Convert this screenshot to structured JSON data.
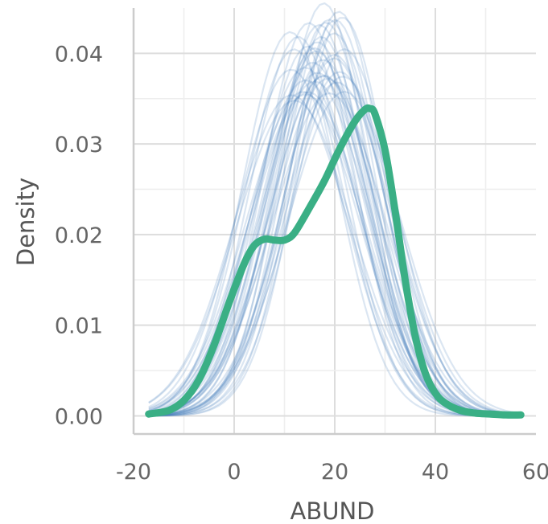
{
  "chart_data": {
    "type": "line",
    "title": "",
    "xlabel": "ABUND",
    "ylabel": "Density",
    "xlim": [
      -20,
      60
    ],
    "ylim": [
      -0.002,
      0.045
    ],
    "x_ticks": [
      -20,
      0,
      20,
      40,
      60
    ],
    "x_tick_labels": [
      "-20",
      "0",
      "20",
      "40",
      "60"
    ],
    "y_ticks": [
      0.0,
      0.01,
      0.02,
      0.03,
      0.04
    ],
    "y_tick_labels": [
      "0.00",
      "0.01",
      "0.02",
      "0.03",
      "0.04"
    ],
    "grid": true,
    "x_range_drawn": [
      -17,
      57
    ],
    "series": [
      {
        "role": "main",
        "color": "#3aaf85",
        "x": [
          -17,
          -13,
          -10,
          -7,
          -4,
          -1,
          2,
          4,
          6,
          8,
          10,
          12,
          15,
          18,
          21,
          24,
          26,
          27,
          28,
          30,
          32,
          34,
          36,
          38,
          40,
          42,
          45,
          48,
          51,
          54,
          57
        ],
        "y": [
          0.0002,
          0.0006,
          0.0017,
          0.004,
          0.0078,
          0.0125,
          0.0168,
          0.0188,
          0.0195,
          0.0194,
          0.0194,
          0.0202,
          0.023,
          0.026,
          0.0295,
          0.0325,
          0.0338,
          0.0339,
          0.0333,
          0.0293,
          0.0226,
          0.015,
          0.0088,
          0.0047,
          0.0025,
          0.0014,
          0.0006,
          0.0003,
          0.0002,
          0.0001,
          0.0001
        ]
      },
      {
        "role": "replicates",
        "color": "#3a76b8",
        "count": 40,
        "mean_min": 12,
        "mean_max": 22,
        "sd_min": 8.8,
        "sd_max": 11.5
      }
    ]
  }
}
